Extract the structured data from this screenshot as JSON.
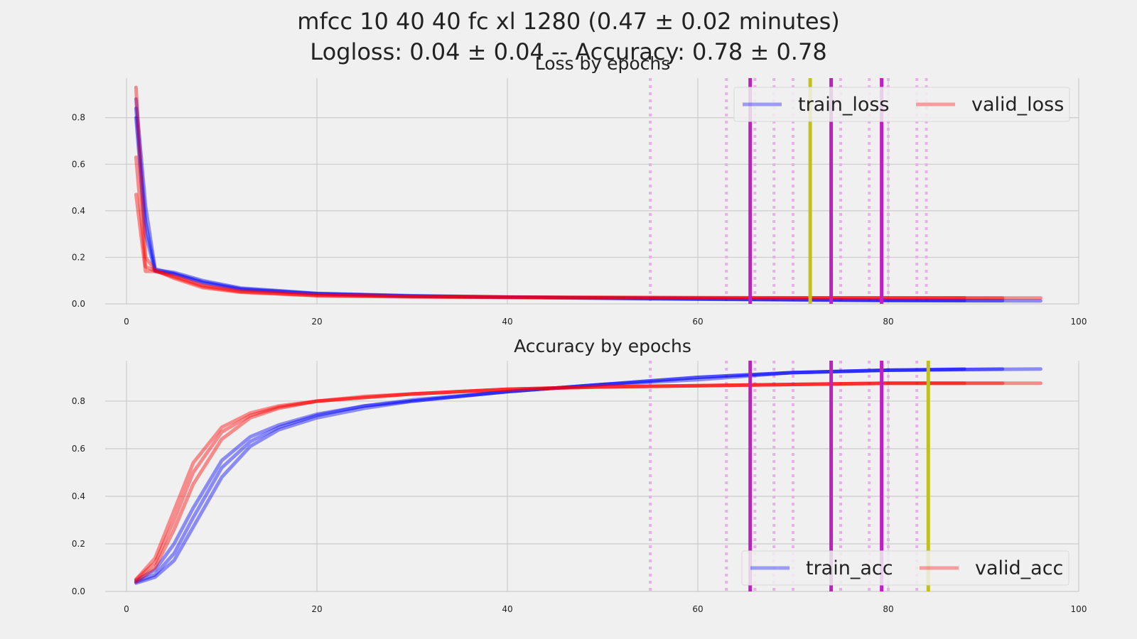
{
  "figure": {
    "title_line1": "mfcc 10 40 40 fc xl 1280   (0.47 ± 0.02 minutes)",
    "title_line2": "Logloss: 0.04 ± 0.04  -- Accuracy:  0.78 ± 0.78"
  },
  "colors": {
    "background": "#f0f0f0",
    "grid": "#cbcbcb",
    "train": "#0000ff",
    "valid": "#ff0000",
    "vline_solid": "#c020c0",
    "vline_dotted": "#e8b0e8",
    "vline_best": "#c0c020"
  },
  "chart_data": [
    {
      "type": "line",
      "title": "Loss by epochs",
      "xlim": [
        0,
        100
      ],
      "ylim": [
        0,
        0.97
      ],
      "xticks": [
        0,
        20,
        40,
        60,
        80,
        100
      ],
      "yticks": [
        0.0,
        0.2,
        0.4,
        0.6,
        0.8
      ],
      "xtick_labels": [
        "0",
        "20",
        "40",
        "60",
        "80",
        "100"
      ],
      "ytick_labels": [
        "0.0",
        "0.2",
        "0.4",
        "0.6",
        "0.8"
      ],
      "grid": true,
      "legend": {
        "position": "top-right",
        "entries": [
          "train_loss",
          "valid_loss"
        ]
      },
      "vlines_dotted": [
        55,
        63,
        66,
        68,
        70,
        75,
        78,
        80,
        83,
        84
      ],
      "vlines_solid": [
        65.5,
        74,
        79.3
      ],
      "vlines_best": [
        71.8
      ],
      "series": [
        {
          "name": "train_loss",
          "color": "#0000ff",
          "runs": [
            {
              "x": [
                1,
                2,
                3,
                5,
                8,
                12,
                20,
                30,
                40,
                50,
                60,
                70,
                80,
                88
              ],
              "y": [
                0.84,
                0.35,
                0.145,
                0.135,
                0.1,
                0.068,
                0.045,
                0.035,
                0.03,
                0.026,
                0.022,
                0.019,
                0.016,
                0.015
              ]
            },
            {
              "x": [
                1,
                2,
                3,
                5,
                8,
                12,
                20,
                30,
                40,
                50,
                60,
                70,
                80,
                92
              ],
              "y": [
                0.88,
                0.42,
                0.15,
                0.13,
                0.095,
                0.065,
                0.044,
                0.034,
                0.029,
                0.025,
                0.021,
                0.018,
                0.015,
                0.014
              ]
            },
            {
              "x": [
                1,
                2,
                3,
                5,
                8,
                12,
                20,
                30,
                40,
                50,
                60,
                70,
                80,
                96
              ],
              "y": [
                0.8,
                0.3,
                0.14,
                0.128,
                0.09,
                0.062,
                0.043,
                0.033,
                0.028,
                0.024,
                0.02,
                0.017,
                0.014,
                0.013
              ]
            }
          ]
        },
        {
          "name": "valid_loss",
          "color": "#ff0000",
          "runs": [
            {
              "x": [
                1,
                2,
                3,
                5,
                8,
                12,
                20,
                30,
                40,
                50,
                60,
                70,
                80,
                88
              ],
              "y": [
                0.47,
                0.14,
                0.14,
                0.12,
                0.08,
                0.055,
                0.038,
                0.032,
                0.029,
                0.028,
                0.027,
                0.026,
                0.026,
                0.026
              ]
            },
            {
              "x": [
                1,
                2,
                3,
                5,
                8,
                12,
                20,
                30,
                40,
                50,
                60,
                70,
                80,
                92
              ],
              "y": [
                0.63,
                0.16,
                0.142,
                0.115,
                0.075,
                0.052,
                0.036,
                0.031,
                0.028,
                0.027,
                0.026,
                0.025,
                0.025,
                0.025
              ]
            },
            {
              "x": [
                1,
                2,
                3,
                5,
                8,
                12,
                20,
                30,
                40,
                50,
                60,
                70,
                80,
                96
              ],
              "y": [
                0.93,
                0.2,
                0.145,
                0.11,
                0.07,
                0.05,
                0.035,
                0.03,
                0.028,
                0.027,
                0.026,
                0.026,
                0.025,
                0.025
              ]
            }
          ]
        }
      ]
    },
    {
      "type": "line",
      "title": "Accuracy by epochs",
      "xlim": [
        0,
        100
      ],
      "ylim": [
        0,
        0.97
      ],
      "xticks": [
        0,
        20,
        40,
        60,
        80,
        100
      ],
      "yticks": [
        0.0,
        0.2,
        0.4,
        0.6,
        0.8
      ],
      "xtick_labels": [
        "0",
        "20",
        "40",
        "60",
        "80",
        "100"
      ],
      "ytick_labels": [
        "0.0",
        "0.2",
        "0.4",
        "0.6",
        "0.8"
      ],
      "grid": true,
      "legend": {
        "position": "bottom-right",
        "entries": [
          "train_acc",
          "valid_acc"
        ]
      },
      "vlines_dotted": [
        55,
        63,
        66,
        68,
        70,
        75,
        78,
        80,
        83
      ],
      "vlines_solid": [
        65.5,
        74,
        79.3
      ],
      "vlines_best": [
        84.2
      ],
      "series": [
        {
          "name": "train_acc",
          "color": "#0000ff",
          "runs": [
            {
              "x": [
                1,
                3,
                5,
                7,
                10,
                13,
                16,
                20,
                25,
                30,
                40,
                50,
                60,
                70,
                80,
                88
              ],
              "y": [
                0.035,
                0.06,
                0.13,
                0.27,
                0.48,
                0.61,
                0.68,
                0.73,
                0.77,
                0.8,
                0.84,
                0.87,
                0.89,
                0.92,
                0.93,
                0.935
              ]
            },
            {
              "x": [
                1,
                3,
                5,
                7,
                10,
                13,
                16,
                20,
                25,
                30,
                40,
                50,
                60,
                70,
                80,
                92
              ],
              "y": [
                0.04,
                0.07,
                0.16,
                0.31,
                0.52,
                0.63,
                0.69,
                0.74,
                0.78,
                0.8,
                0.84,
                0.87,
                0.9,
                0.92,
                0.93,
                0.935
              ]
            },
            {
              "x": [
                1,
                3,
                5,
                7,
                10,
                13,
                16,
                20,
                25,
                30,
                40,
                50,
                60,
                70,
                80,
                96
              ],
              "y": [
                0.045,
                0.09,
                0.2,
                0.35,
                0.55,
                0.65,
                0.7,
                0.745,
                0.78,
                0.805,
                0.84,
                0.87,
                0.9,
                0.92,
                0.93,
                0.935
              ]
            }
          ]
        },
        {
          "name": "valid_acc",
          "color": "#ff0000",
          "runs": [
            {
              "x": [
                1,
                3,
                5,
                7,
                10,
                13,
                16,
                20,
                25,
                30,
                40,
                50,
                60,
                70,
                80,
                88
              ],
              "y": [
                0.04,
                0.1,
                0.26,
                0.45,
                0.64,
                0.73,
                0.77,
                0.8,
                0.815,
                0.83,
                0.85,
                0.86,
                0.865,
                0.87,
                0.875,
                0.875
              ]
            },
            {
              "x": [
                1,
                3,
                5,
                7,
                10,
                13,
                16,
                20,
                25,
                30,
                40,
                50,
                60,
                70,
                80,
                92
              ],
              "y": [
                0.05,
                0.12,
                0.3,
                0.5,
                0.67,
                0.74,
                0.775,
                0.8,
                0.815,
                0.83,
                0.85,
                0.86,
                0.865,
                0.87,
                0.875,
                0.875
              ]
            },
            {
              "x": [
                1,
                3,
                5,
                7,
                10,
                13,
                16,
                20,
                25,
                30,
                40,
                50,
                60,
                70,
                80,
                96
              ],
              "y": [
                0.05,
                0.14,
                0.34,
                0.54,
                0.69,
                0.75,
                0.78,
                0.8,
                0.82,
                0.83,
                0.85,
                0.86,
                0.865,
                0.87,
                0.875,
                0.875
              ]
            }
          ]
        }
      ]
    }
  ]
}
